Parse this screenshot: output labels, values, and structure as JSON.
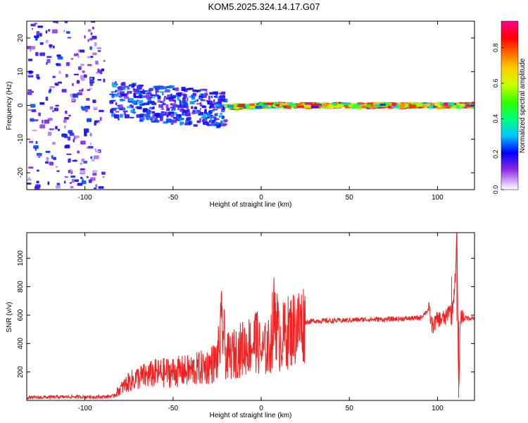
{
  "figure_title": "KOM5.2025.324.14.17.G07",
  "chart_data": [
    {
      "type": "heatmap",
      "title": "KOM5.2025.324.14.17.G07",
      "xlabel": "Height of straight line (km)",
      "ylabel": "Frequency (Hz)",
      "xlim": [
        -133,
        121
      ],
      "ylim": [
        -25,
        25
      ],
      "xticks": [
        -100,
        -50,
        0,
        50,
        100
      ],
      "yticks": [
        -20,
        -10,
        0,
        10,
        20
      ],
      "xtick_labels": [
        "-100",
        "-50",
        "0",
        "50",
        "100"
      ],
      "ytick_labels": [
        "-20",
        "-10",
        "0",
        "10",
        "20"
      ],
      "colorbar": {
        "label": "Normalized spectral amplitude",
        "range": [
          0,
          0.95
        ],
        "ticks": [
          0.0,
          0.2,
          0.4,
          0.6,
          0.8
        ],
        "tick_labels": [
          "0.0",
          "0.2",
          "0.4",
          "0.6",
          "0.8"
        ]
      },
      "description_regions": [
        {
          "x_range": [
            -133,
            -85
          ],
          "freq_range": [
            -25,
            25
          ],
          "amplitude": [
            0.05,
            0.25
          ]
        },
        {
          "x_range": [
            -85,
            -20
          ],
          "freq_range": [
            -6,
            5
          ],
          "amplitude": [
            0.1,
            0.3
          ]
        },
        {
          "x_range": [
            -20,
            121
          ],
          "freq_range": [
            -1,
            1
          ],
          "amplitude": [
            0.2,
            0.95
          ]
        }
      ]
    },
    {
      "type": "line",
      "xlabel": "Height of straight line (km)",
      "ylabel": "SNR (v/v)",
      "xlim": [
        -133,
        121
      ],
      "ylim": [
        0,
        1180
      ],
      "xticks": [
        -100,
        -50,
        0,
        50,
        100
      ],
      "yticks": [
        200,
        400,
        600,
        800,
        1000
      ],
      "xtick_labels": [
        "-100",
        "-50",
        "0",
        "50",
        "100"
      ],
      "ytick_labels": [
        "200",
        "400",
        "600",
        "800",
        "1000"
      ],
      "series": [
        {
          "name": "SNR",
          "color": "#ee2222",
          "x": [
            -133,
            -110,
            -90,
            -84,
            -80,
            -75,
            -70,
            -60,
            -50,
            -40,
            -30,
            -25,
            -22,
            -20,
            -15,
            -10,
            -5,
            -3,
            0,
            5,
            8,
            10,
            15,
            20,
            25,
            30,
            40,
            50,
            60,
            70,
            80,
            90,
            95,
            97,
            100,
            105,
            107,
            108,
            110,
            111,
            112,
            113,
            115,
            121
          ],
          "values": [
            20,
            25,
            25,
            30,
            80,
            130,
            160,
            190,
            200,
            210,
            240,
            280,
            550,
            300,
            330,
            370,
            400,
            430,
            340,
            380,
            650,
            420,
            480,
            520,
            550,
            560,
            560,
            565,
            570,
            570,
            575,
            580,
            640,
            520,
            570,
            580,
            660,
            570,
            850,
            1180,
            20,
            600,
            580,
            580
          ]
        }
      ]
    }
  ]
}
